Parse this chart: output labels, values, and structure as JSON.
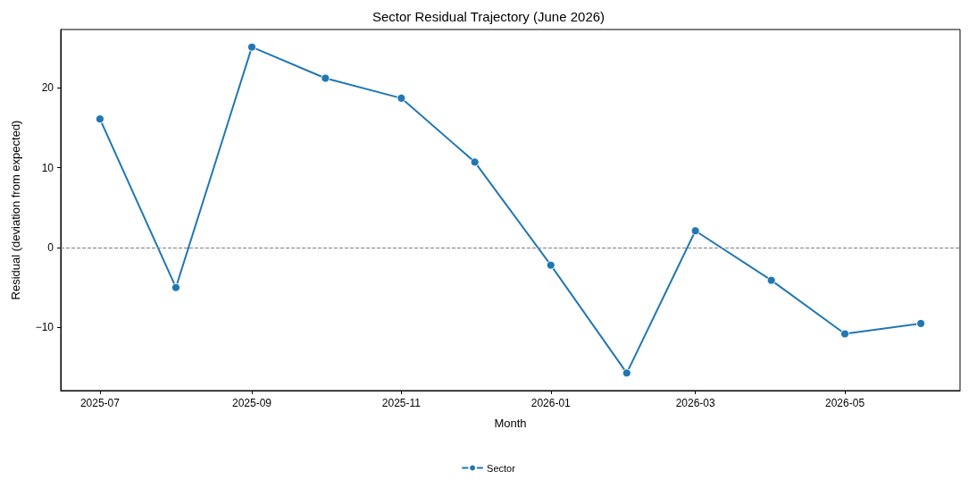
{
  "chart_data": {
    "type": "line",
    "title": "Sector Residual Trajectory (June 2026)",
    "xlabel": "Month",
    "ylabel": "Residual (deviation from expected)",
    "x": [
      "2025-07",
      "2025-08",
      "2025-09",
      "2025-10",
      "2025-11",
      "2025-12",
      "2026-01",
      "2026-02",
      "2026-03",
      "2026-04",
      "2026-05",
      "2026-06"
    ],
    "series": [
      {
        "name": "Sector",
        "color": "#1f77b4",
        "values": [
          16.1,
          -5.0,
          25.1,
          21.2,
          18.7,
          10.7,
          -2.2,
          -15.7,
          2.1,
          -4.1,
          -10.8,
          -9.5
        ]
      }
    ],
    "xlim": [
      "2025-06-15",
      "2026-06-17"
    ],
    "xticks": [
      "2025-07",
      "2025-09",
      "2025-11",
      "2026-01",
      "2026-03",
      "2026-05"
    ],
    "ylim": [
      -17.9,
      27.3
    ],
    "yticks": [
      -10,
      0,
      10,
      20
    ],
    "ref_lines": [
      {
        "axis": "y",
        "value": 0,
        "color": "#808080",
        "line_style": "dashed"
      }
    ],
    "grid": false,
    "legend": "bottom",
    "marker": "circle",
    "line_style": "solid"
  }
}
